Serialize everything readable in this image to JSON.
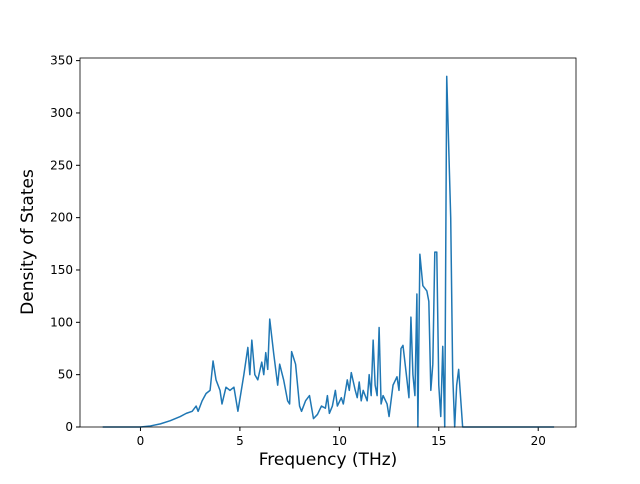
{
  "chart_data": {
    "type": "line",
    "xlabel": "Frequency (THz)",
    "ylabel": "Density of States",
    "x": [
      -1.9,
      -1,
      0,
      0.5,
      1,
      1.5,
      2,
      2.3,
      2.6,
      2.8,
      2.9,
      3.1,
      3.3,
      3.5,
      3.65,
      3.8,
      4.0,
      4.1,
      4.3,
      4.5,
      4.7,
      4.9,
      5.2,
      5.4,
      5.5,
      5.6,
      5.75,
      5.9,
      6.1,
      6.2,
      6.3,
      6.4,
      6.5,
      6.7,
      6.9,
      7.0,
      7.2,
      7.4,
      7.5,
      7.6,
      7.8,
      8.0,
      8.1,
      8.3,
      8.5,
      8.7,
      8.9,
      9.1,
      9.3,
      9.4,
      9.5,
      9.65,
      9.8,
      9.9,
      10.1,
      10.2,
      10.4,
      10.5,
      10.6,
      10.8,
      10.9,
      11.0,
      11.1,
      11.2,
      11.4,
      11.5,
      11.6,
      11.7,
      11.8,
      11.9,
      12.0,
      12.1,
      12.2,
      12.4,
      12.5,
      12.7,
      12.9,
      13.0,
      13.1,
      13.2,
      13.4,
      13.5,
      13.6,
      13.7,
      13.8,
      13.9,
      13.95,
      14.05,
      14.2,
      14.4,
      14.5,
      14.6,
      14.7,
      14.8,
      14.9,
      15.0,
      15.1,
      15.2,
      15.3,
      15.4,
      15.6,
      15.7,
      15.8,
      15.9,
      16.0,
      16.2,
      17,
      18,
      19,
      20,
      20.8
    ],
    "values": [
      0,
      0,
      0,
      1,
      3,
      6,
      10,
      13,
      15,
      20,
      15,
      25,
      32,
      35,
      63,
      45,
      35,
      22,
      38,
      35,
      38,
      15,
      50,
      76,
      50,
      83,
      50,
      45,
      62,
      50,
      71,
      55,
      103,
      70,
      40,
      60,
      45,
      25,
      22,
      72,
      60,
      20,
      15,
      25,
      30,
      8,
      12,
      20,
      18,
      30,
      13,
      20,
      35,
      20,
      28,
      22,
      45,
      35,
      52,
      35,
      28,
      43,
      25,
      35,
      25,
      50,
      30,
      83,
      40,
      30,
      95,
      22,
      30,
      22,
      10,
      40,
      48,
      35,
      75,
      78,
      45,
      28,
      105,
      50,
      30,
      127,
      0,
      165,
      135,
      130,
      120,
      35,
      60,
      167,
      167,
      40,
      10,
      77,
      0,
      335,
      200,
      50,
      0,
      40,
      55,
      0,
      0,
      0,
      0,
      0,
      0
    ],
    "color": "#1f77b4",
    "xlim": [
      -3.04,
      21.9
    ],
    "ylim": [
      0,
      352.5
    ],
    "xticks": [
      0,
      5,
      10,
      15,
      20
    ],
    "yticks": [
      0,
      50,
      100,
      150,
      200,
      250,
      300,
      350
    ],
    "grid": false
  }
}
